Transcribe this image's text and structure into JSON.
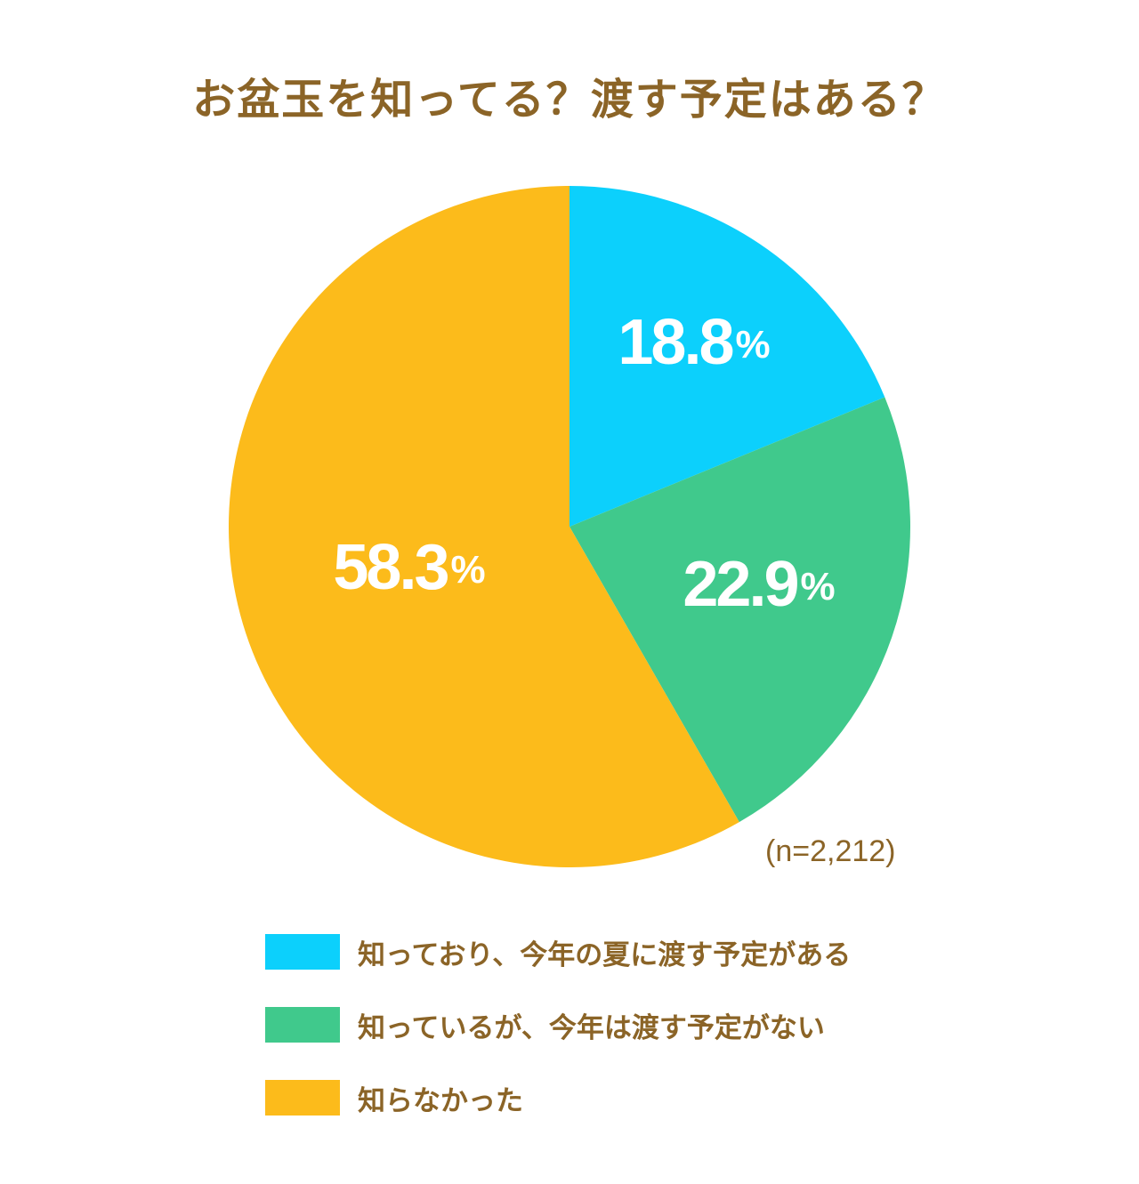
{
  "chart_data": {
    "type": "pie",
    "title": "お盆玉を知ってる？渡す予定はある？",
    "sample_size": "(n=2,212)",
    "slices": [
      {
        "label": "知っており、今年の夏に渡す予定がある",
        "value": 18.8,
        "display": "18.8",
        "unit": "%",
        "color": "#0cd0fc"
      },
      {
        "label": "知っているが、今年は渡す予定がない",
        "value": 22.9,
        "display": "22.9",
        "unit": "%",
        "color": "#40c98c"
      },
      {
        "label": "知らなかった",
        "value": 58.3,
        "display": "58.3",
        "unit": "%",
        "color": "#fcbb1b"
      }
    ],
    "start_angle": "12 o'clock",
    "direction": "clockwise",
    "legend_position": "bottom"
  }
}
